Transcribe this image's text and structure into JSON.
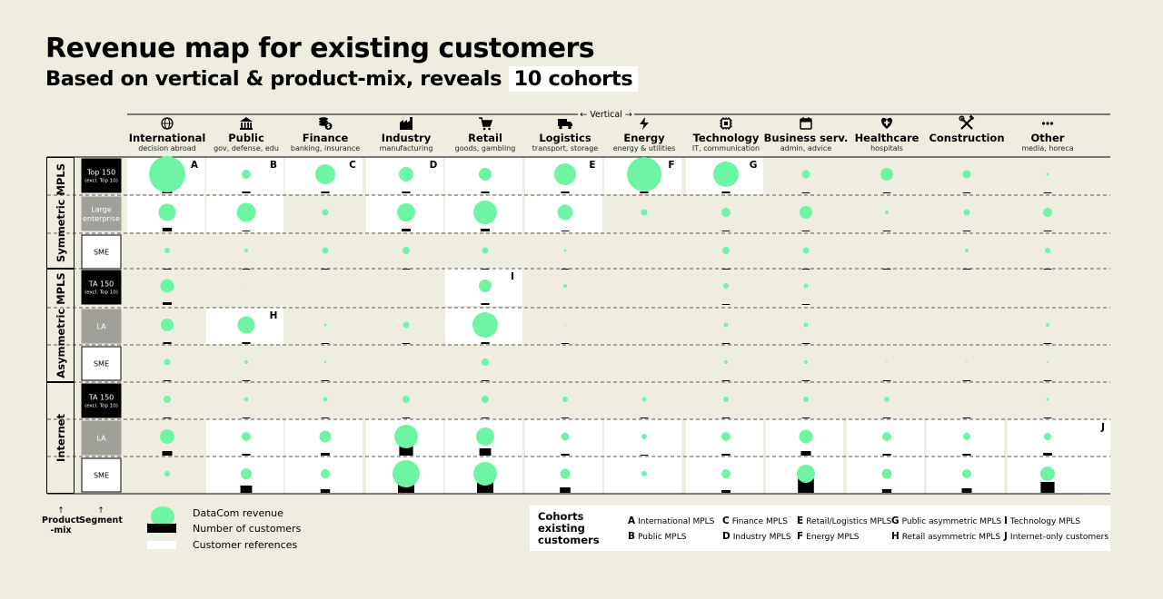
{
  "title": "Revenue map for existing customers",
  "subtitle_prefix": "Based on vertical & product-mix, reveals",
  "subtitle_highlight": "10 cohorts",
  "colors": {
    "revenue": "#6df5a4",
    "customers": "#000000",
    "references": "#ffffff",
    "background": "#efece0",
    "segment_grey": "#a09f98"
  },
  "axis_labels": {
    "vertical": "← Vertical →",
    "product_mix": "Product\n-mix",
    "segment": "Segment"
  },
  "chart_data": {
    "type": "bubble-matrix",
    "verticals": [
      {
        "name": "International",
        "sub": "decision abroad",
        "icon": "globe-icon"
      },
      {
        "name": "Public",
        "sub": "gov, defense, edu",
        "icon": "bank-icon"
      },
      {
        "name": "Finance",
        "sub": "banking, insurance",
        "icon": "coins-icon"
      },
      {
        "name": "Industry",
        "sub": "manufacturing",
        "icon": "factory-icon"
      },
      {
        "name": "Retail",
        "sub": "goods, gambling",
        "icon": "cart-icon"
      },
      {
        "name": "Logistics",
        "sub": "transport, storage",
        "icon": "truck-icon"
      },
      {
        "name": "Energy",
        "sub": "energy & utilities",
        "icon": "bolt-icon"
      },
      {
        "name": "Technology",
        "sub": "IT, communication",
        "icon": "chip-icon"
      },
      {
        "name": "Business serv.",
        "sub": "admin, advice",
        "icon": "calendar-icon"
      },
      {
        "name": "Healthcare",
        "sub": "hospitals",
        "icon": "heart-plus-icon"
      },
      {
        "name": "Construction",
        "sub": "",
        "icon": "tools-icon"
      },
      {
        "name": "Other",
        "sub": "media, horeca",
        "icon": "dots-icon"
      }
    ],
    "product_mix_groups": [
      {
        "name": "Symmetric MPLS",
        "rows": [
          0,
          1,
          2
        ]
      },
      {
        "name": "Asymmetric MPLS",
        "rows": [
          3,
          4,
          5
        ]
      },
      {
        "name": "Internet",
        "rows": [
          6,
          7,
          8
        ]
      }
    ],
    "segments": [
      {
        "label": "Top 150",
        "note": "(excl. Top 10)",
        "style": "black"
      },
      {
        "label": "Large\nenterprise",
        "note": "",
        "style": "grey"
      },
      {
        "label": "SME",
        "note": "",
        "style": "outline"
      },
      {
        "label": "TA 150",
        "note": "(excl. Top 10)",
        "style": "black"
      },
      {
        "label": "LA",
        "note": "",
        "style": "grey"
      },
      {
        "label": "SME",
        "note": "",
        "style": "outline"
      },
      {
        "label": "TA 150",
        "note": "(excl. Top 10)",
        "style": "black"
      },
      {
        "label": "LA",
        "note": "",
        "style": "grey"
      },
      {
        "label": "SME",
        "note": "",
        "style": "outline"
      }
    ],
    "revenue_bubble_radius": [
      [
        20,
        5,
        11,
        8,
        7,
        12,
        19,
        14,
        4.5,
        7,
        4.5,
        1.5
      ],
      [
        9.5,
        10.5,
        3.5,
        10,
        13,
        8.5,
        3.5,
        5,
        7,
        2,
        3.5,
        5
      ],
      [
        3,
        2,
        3.5,
        4,
        3.5,
        1.5,
        0,
        4,
        3.5,
        0,
        2,
        3
      ],
      [
        7.5,
        0.5,
        0,
        0,
        7,
        2,
        0,
        3,
        2.5,
        0,
        0,
        0
      ],
      [
        7,
        9.5,
        1.5,
        3.5,
        14,
        0.8,
        0,
        2.5,
        2.5,
        0,
        0,
        2
      ],
      [
        3.5,
        2,
        1.2,
        0,
        4,
        0,
        0,
        2,
        2,
        0.8,
        0.8,
        1
      ],
      [
        4,
        2.5,
        2.5,
        4,
        4,
        3,
        2.5,
        3,
        3,
        3,
        0,
        1.5
      ],
      [
        8,
        5,
        6.5,
        13,
        10,
        4.5,
        3,
        5,
        7.5,
        5,
        4,
        4
      ],
      [
        3,
        6,
        5,
        15,
        13,
        5.5,
        3,
        5,
        10,
        5.5,
        5,
        8
      ]
    ],
    "customer_bar_height": [
      [
        5,
        2,
        2,
        2,
        2,
        2,
        2,
        2,
        1,
        1,
        1,
        1
      ],
      [
        4,
        1,
        0,
        3,
        3,
        1,
        0,
        1,
        1,
        1,
        1,
        1
      ],
      [
        1,
        1,
        1,
        1,
        1,
        1,
        0,
        1,
        1,
        1,
        1,
        1
      ],
      [
        3,
        0,
        0,
        0,
        2,
        0,
        0,
        1,
        1,
        0,
        0,
        0
      ],
      [
        2,
        2,
        1,
        1,
        2,
        1,
        0,
        1,
        1,
        0,
        0,
        1
      ],
      [
        1,
        1,
        1,
        0,
        1,
        0,
        0,
        1,
        1,
        1,
        1,
        1
      ],
      [
        1,
        1,
        1,
        1,
        1,
        1,
        1,
        1,
        1,
        1,
        1,
        1
      ],
      [
        5,
        2,
        3,
        12,
        8,
        2,
        1,
        2,
        5,
        2,
        2,
        3
      ],
      [
        0,
        8,
        4,
        20,
        30,
        6,
        0,
        3,
        16,
        4,
        5,
        12
      ]
    ],
    "customer_references": [
      [
        1,
        1,
        1,
        1,
        1,
        1,
        1,
        1,
        0,
        0,
        0,
        0
      ],
      [
        1,
        1,
        0,
        1,
        1,
        1,
        0,
        0,
        0,
        0,
        0,
        0
      ],
      [
        0,
        0,
        0,
        0,
        0,
        0,
        0,
        0,
        0,
        0,
        0,
        0
      ],
      [
        0,
        0,
        0,
        0,
        1,
        0,
        0,
        0,
        0,
        0,
        0,
        0
      ],
      [
        0,
        1,
        0,
        0,
        1,
        0,
        0,
        0,
        0,
        0,
        0,
        0
      ],
      [
        0,
        0,
        0,
        0,
        0,
        0,
        0,
        0,
        0,
        0,
        0,
        0
      ],
      [
        0,
        0,
        0,
        0,
        0,
        0,
        0,
        0,
        0,
        0,
        0,
        0
      ],
      [
        0,
        1,
        1,
        1,
        1,
        1,
        1,
        1,
        1,
        1,
        1,
        1
      ],
      [
        0,
        1,
        1,
        1,
        1,
        1,
        1,
        1,
        1,
        1,
        1,
        1
      ]
    ],
    "cohort_markers": [
      {
        "letter": "A",
        "row": 0,
        "col": 0
      },
      {
        "letter": "B",
        "row": 0,
        "col": 1
      },
      {
        "letter": "C",
        "row": 0,
        "col": 2
      },
      {
        "letter": "D",
        "row": 0,
        "col": 3
      },
      {
        "letter": "E",
        "row": 0,
        "col": 5
      },
      {
        "letter": "F",
        "row": 0,
        "col": 6
      },
      {
        "letter": "G",
        "row": 0,
        "col": 7
      },
      {
        "letter": "H",
        "row": 4,
        "col": 1
      },
      {
        "letter": "I",
        "row": 3,
        "col": 4
      },
      {
        "letter": "J",
        "row": 7,
        "col": 12
      }
    ]
  },
  "legend": {
    "revenue": "DataCom revenue",
    "customers": "Number of customers",
    "references": "Customer references"
  },
  "cohorts": {
    "heading": "Cohorts existing customers",
    "items": [
      {
        "letter": "A",
        "label": "International MPLS"
      },
      {
        "letter": "B",
        "label": "Public MPLS"
      },
      {
        "letter": "C",
        "label": "Finance MPLS"
      },
      {
        "letter": "D",
        "label": "Industry MPLS"
      },
      {
        "letter": "E",
        "label": "Retail/Logistics MPLS"
      },
      {
        "letter": "F",
        "label": "Energy MPLS"
      },
      {
        "letter": "G",
        "label": "Public asymmetric MPLS"
      },
      {
        "letter": "H",
        "label": "Retail asymmetric MPLS"
      },
      {
        "letter": "I",
        "label": "Technology MPLS"
      },
      {
        "letter": "J",
        "label": "Internet-only customers"
      }
    ]
  }
}
